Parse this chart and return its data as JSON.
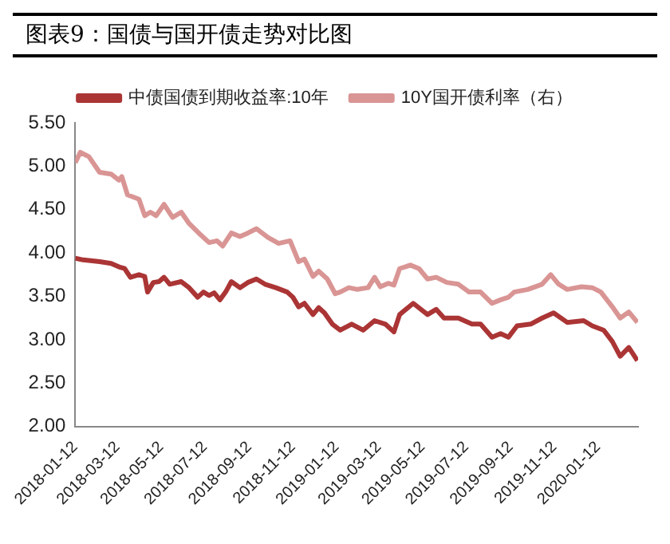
{
  "chart_data": {
    "type": "line",
    "title": "图表9：国债与国开债走势对比图",
    "legend": "top",
    "grid": false,
    "marker": "none",
    "line_style": "solid",
    "xlim": [
      "2018-01-12",
      "2020-03-08"
    ],
    "xticks": [
      "2018-01-12",
      "2018-03-12",
      "2018-05-12",
      "2018-07-12",
      "2018-09-12",
      "2018-11-12",
      "2019-01-12",
      "2019-03-12",
      "2019-05-12",
      "2019-07-12",
      "2019-09-12",
      "2019-11-12",
      "2020-01-12"
    ],
    "ylim": [
      2,
      5.5
    ],
    "yticks": [
      {
        "value": 2,
        "label": "2.00"
      },
      {
        "value": 2.5,
        "label": "2.50"
      },
      {
        "value": 3,
        "label": "3.00"
      },
      {
        "value": 3.5,
        "label": "3.50"
      },
      {
        "value": 4,
        "label": "4.00"
      },
      {
        "value": 4.5,
        "label": "4.50"
      },
      {
        "value": 5,
        "label": "5.00"
      },
      {
        "value": 5.5,
        "label": "5.50"
      }
    ],
    "series": [
      {
        "name": "中债国债到期收益率:10年",
        "color": "#ab3535",
        "x": [
          "2018-01-12",
          "2018-01-23",
          "2018-02-15",
          "2018-03-03",
          "2018-03-14",
          "2018-03-22",
          "2018-03-30",
          "2018-04-11",
          "2018-04-19",
          "2018-04-23",
          "2018-05-01",
          "2018-05-09",
          "2018-05-16",
          "2018-05-24",
          "2018-06-09",
          "2018-06-20",
          "2018-07-02",
          "2018-07-10",
          "2018-07-18",
          "2018-07-25",
          "2018-08-02",
          "2018-08-10",
          "2018-08-18",
          "2018-08-30",
          "2018-09-10",
          "2018-09-22",
          "2018-10-04",
          "2018-10-19",
          "2018-11-04",
          "2018-11-12",
          "2018-11-20",
          "2018-11-28",
          "2018-12-10",
          "2018-12-18",
          "2018-12-26",
          "2019-01-06",
          "2019-01-17",
          "2019-02-02",
          "2019-02-18",
          "2019-03-06",
          "2019-03-21",
          "2019-04-02",
          "2019-04-10",
          "2019-04-29",
          "2019-05-19",
          "2019-05-31",
          "2019-06-11",
          "2019-07-01",
          "2019-07-20",
          "2019-08-01",
          "2019-08-17",
          "2019-08-29",
          "2019-09-09",
          "2019-09-21",
          "2019-10-10",
          "2019-10-26",
          "2019-11-11",
          "2019-11-30",
          "2019-12-23",
          "2020-01-04",
          "2020-01-20",
          "2020-02-01",
          "2020-02-12",
          "2020-02-24",
          "2020-03-07"
        ],
        "values": [
          3.94,
          3.92,
          3.9,
          3.88,
          3.84,
          3.82,
          3.72,
          3.75,
          3.73,
          3.55,
          3.66,
          3.67,
          3.72,
          3.64,
          3.67,
          3.6,
          3.49,
          3.55,
          3.51,
          3.54,
          3.46,
          3.55,
          3.67,
          3.6,
          3.66,
          3.7,
          3.64,
          3.6,
          3.55,
          3.49,
          3.38,
          3.42,
          3.29,
          3.37,
          3.31,
          3.18,
          3.11,
          3.18,
          3.11,
          3.22,
          3.18,
          3.09,
          3.29,
          3.42,
          3.29,
          3.35,
          3.25,
          3.25,
          3.18,
          3.18,
          3.03,
          3.07,
          3.03,
          3.16,
          3.18,
          3.25,
          3.31,
          3.2,
          3.22,
          3.16,
          3.11,
          2.98,
          2.81,
          2.91,
          2.76
        ]
      },
      {
        "name": "10Y国开债利率（右）",
        "color": "#d99594",
        "x": [
          "2018-01-12",
          "2018-01-19",
          "2018-01-31",
          "2018-02-15",
          "2018-03-03",
          "2018-03-14",
          "2018-03-18",
          "2018-03-26",
          "2018-04-11",
          "2018-04-19",
          "2018-04-27",
          "2018-05-05",
          "2018-05-16",
          "2018-05-28",
          "2018-06-09",
          "2018-06-20",
          "2018-07-06",
          "2018-07-18",
          "2018-07-29",
          "2018-08-06",
          "2018-08-18",
          "2018-08-30",
          "2018-09-10",
          "2018-09-22",
          "2018-10-08",
          "2018-10-23",
          "2018-11-08",
          "2018-11-20",
          "2018-11-28",
          "2018-12-10",
          "2018-12-18",
          "2018-12-30",
          "2019-01-10",
          "2019-01-17",
          "2019-01-29",
          "2019-02-10",
          "2019-02-25",
          "2019-03-06",
          "2019-03-14",
          "2019-03-25",
          "2019-04-02",
          "2019-04-10",
          "2019-04-25",
          "2019-05-07",
          "2019-05-19",
          "2019-05-31",
          "2019-06-15",
          "2019-07-01",
          "2019-07-16",
          "2019-08-01",
          "2019-08-17",
          "2019-08-29",
          "2019-09-09",
          "2019-09-17",
          "2019-10-06",
          "2019-10-26",
          "2019-11-07",
          "2019-11-18",
          "2019-11-30",
          "2019-12-20",
          "2020-01-04",
          "2020-01-16",
          "2020-02-01",
          "2020-02-12",
          "2020-02-24",
          "2020-03-07"
        ],
        "values": [
          5.04,
          5.16,
          5.11,
          4.93,
          4.91,
          4.84,
          4.88,
          4.67,
          4.62,
          4.43,
          4.47,
          4.43,
          4.56,
          4.41,
          4.47,
          4.34,
          4.21,
          4.12,
          4.14,
          4.08,
          4.23,
          4.19,
          4.23,
          4.28,
          4.18,
          4.11,
          4.14,
          3.9,
          3.93,
          3.73,
          3.79,
          3.7,
          3.53,
          3.55,
          3.6,
          3.58,
          3.6,
          3.72,
          3.61,
          3.65,
          3.63,
          3.82,
          3.86,
          3.82,
          3.7,
          3.72,
          3.66,
          3.64,
          3.55,
          3.55,
          3.42,
          3.46,
          3.49,
          3.55,
          3.58,
          3.64,
          3.75,
          3.64,
          3.58,
          3.61,
          3.6,
          3.55,
          3.38,
          3.25,
          3.32,
          3.2
        ]
      }
    ]
  }
}
